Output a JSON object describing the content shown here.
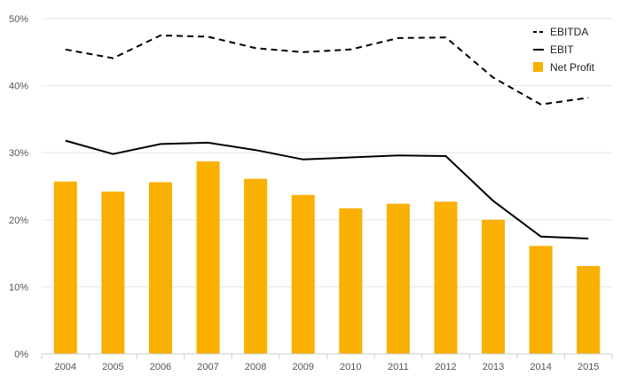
{
  "chart_data": {
    "type": "bar",
    "categories": [
      "2004",
      "2005",
      "2006",
      "2007",
      "2008",
      "2009",
      "2010",
      "2011",
      "2012",
      "2013",
      "2014",
      "2015"
    ],
    "series": [
      {
        "name": "EBITDA",
        "kind": "line",
        "style": "dashed",
        "color": "#000000",
        "values": [
          45.4,
          44.1,
          47.5,
          47.3,
          45.6,
          45.0,
          45.4,
          47.1,
          47.2,
          41.2,
          37.2,
          38.2
        ]
      },
      {
        "name": "EBIT",
        "kind": "line",
        "style": "solid",
        "color": "#000000",
        "values": [
          31.8,
          29.8,
          31.3,
          31.5,
          30.4,
          29.0,
          29.3,
          29.6,
          29.5,
          22.8,
          17.5,
          17.2
        ]
      },
      {
        "name": "Net Profit",
        "kind": "bar",
        "color": "#f9b000",
        "values": [
          25.7,
          24.2,
          25.6,
          28.7,
          26.1,
          23.7,
          21.7,
          22.4,
          22.7,
          20.0,
          16.1,
          13.1
        ]
      }
    ],
    "y_ticks": [
      "0%",
      "10%",
      "20%",
      "30%",
      "40%",
      "50%"
    ],
    "ylim": [
      0,
      50
    ],
    "grid": true,
    "legend_position": "top-right",
    "gridline_color": "#e6e6e6"
  }
}
